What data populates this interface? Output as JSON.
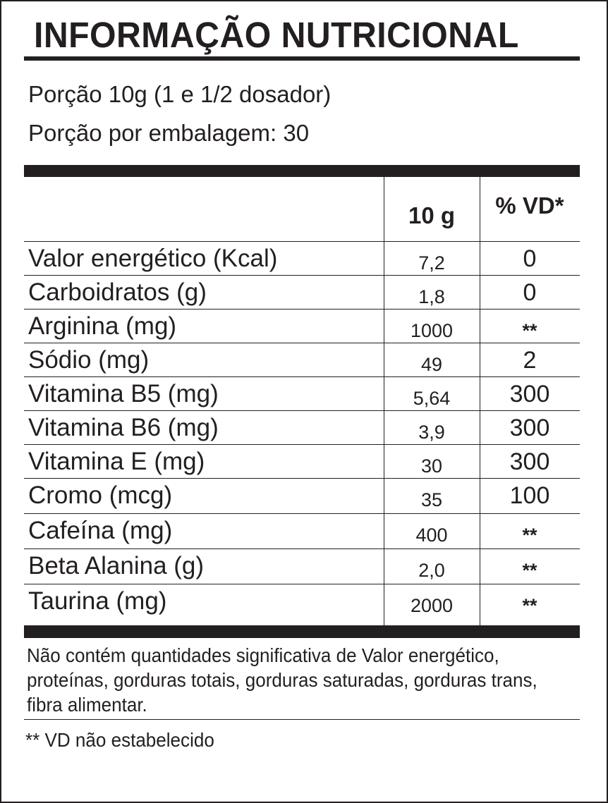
{
  "title": "INFORMAÇÃO NUTRICIONAL",
  "serving": {
    "portion": "Porção 10g (1 e 1/2 dosador)",
    "per_package": "Porção por embalagem: 30"
  },
  "table": {
    "headers": {
      "nutrient": "",
      "quantity": "10 g",
      "daily_value": "% VD*"
    },
    "rows": [
      {
        "name": "Valor energético (Kcal)",
        "quantity": "7,2",
        "daily_value": "0"
      },
      {
        "name": "Carboidratos (g)",
        "quantity": "1,8",
        "daily_value": "0"
      },
      {
        "name": "Arginina (mg)",
        "quantity": "1000",
        "daily_value": "**"
      },
      {
        "name": "Sódio (mg)",
        "quantity": "49",
        "daily_value": "2"
      },
      {
        "name": "Vitamina B5 (mg)",
        "quantity": "5,64",
        "daily_value": "300"
      },
      {
        "name": "Vitamina B6 (mg)",
        "quantity": "3,9",
        "daily_value": "300"
      },
      {
        "name": "Vitamina E (mg)",
        "quantity": "30",
        "daily_value": "300"
      },
      {
        "name": "Cromo (mcg)",
        "quantity": "35",
        "daily_value": "100"
      },
      {
        "name": "Cafeína (mg)",
        "quantity": "400",
        "daily_value": "**"
      },
      {
        "name": "Beta Alanina (g)",
        "quantity": "2,0",
        "daily_value": "**"
      },
      {
        "name": "Taurina (mg)",
        "quantity": "2000",
        "daily_value": "**"
      }
    ]
  },
  "footnote": "Não contém quantidades significativa de Valor energético, proteínas, gorduras totais, gorduras saturadas, gorduras trans, fibra alimentar.",
  "vd_note": "** VD não estabelecido",
  "colors": {
    "ink": "#231f20",
    "background": "#ffffff"
  }
}
